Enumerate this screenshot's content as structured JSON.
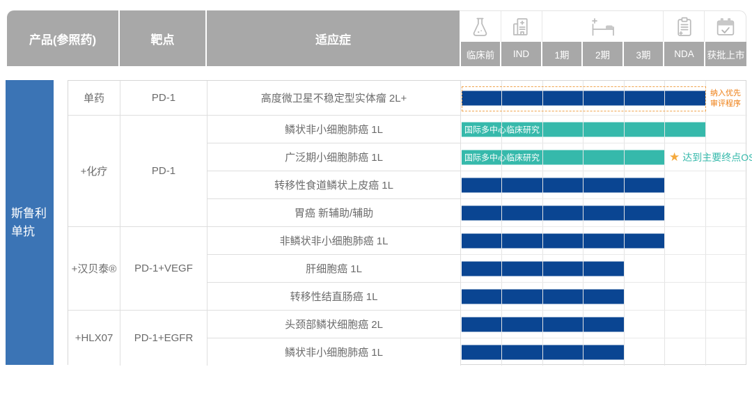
{
  "palette": {
    "header_bg": "#a8a8a8",
    "sidebar_blue": "#3b74b5",
    "navy": "#0a4592",
    "teal": "#36b9ab",
    "orange": "#ee7d11",
    "orange_dash": "#f0a24b",
    "star_amber": "#f5a93c",
    "grid_line": "#e4e4e4",
    "text_gray": "#6b6b6b"
  },
  "header": {
    "columns": {
      "product": "产品(参照药)",
      "target": "靶点",
      "indication": "适应症"
    },
    "phase_icons": [
      "flask-icon",
      "hospital-icon",
      "hospital-bed-icon",
      "clipboard-icon",
      "calendar-check-icon"
    ]
  },
  "sidebar": {
    "product_name": "斯鲁利单抗"
  },
  "chart_data": {
    "type": "bar",
    "subtype": "pipeline-gantt",
    "product": "斯鲁利单抗",
    "phase_axis": [
      "临床前",
      "IND",
      "1期",
      "2期",
      "3期",
      "NDA",
      "获批上市"
    ],
    "groups": [
      {
        "regimen": "单药",
        "target": "PD-1",
        "row_start": 1,
        "row_count": 1
      },
      {
        "regimen": "+化疗",
        "target": "PD-1",
        "row_start": 2,
        "row_count": 4
      },
      {
        "regimen": "+汉贝泰®",
        "target": "PD-1+VEGF",
        "row_start": 6,
        "row_count": 3
      },
      {
        "regimen": "+HLX07",
        "target": "PD-1+EGFR",
        "row_start": 9,
        "row_count": 2
      }
    ],
    "series": [
      {
        "indication": "高度微卫星不稳定型实体瘤 2L+",
        "start_phase": "临床前",
        "end_phase": "NDA",
        "color": "navy",
        "annotation": "纳入优先审评程序"
      },
      {
        "indication": "鳞状非小细胞肺癌 1L",
        "start_phase": "临床前",
        "end_phase": "NDA",
        "color": "teal",
        "bar_label": "国际多中心临床研究"
      },
      {
        "indication": "广泛期小细胞肺癌 1L",
        "start_phase": "临床前",
        "end_phase": "3期",
        "color": "teal",
        "bar_label": "国际多中心临床研究",
        "milestone": {
          "icon": "star-icon",
          "text": "达到主要终点OS"
        }
      },
      {
        "indication": "转移性食道鳞状上皮癌 1L",
        "start_phase": "临床前",
        "end_phase": "3期",
        "color": "navy"
      },
      {
        "indication": "胃癌 新辅助/辅助",
        "start_phase": "临床前",
        "end_phase": "3期",
        "color": "navy"
      },
      {
        "indication": "非鳞状非小细胞肺癌 1L",
        "start_phase": "临床前",
        "end_phase": "3期",
        "color": "navy"
      },
      {
        "indication": "肝细胞癌 1L",
        "start_phase": "临床前",
        "end_phase": "2期",
        "color": "navy"
      },
      {
        "indication": "转移性结直肠癌 1L",
        "start_phase": "临床前",
        "end_phase": "2期",
        "color": "navy"
      },
      {
        "indication": "头颈部鳞状细胞癌 2L",
        "start_phase": "临床前",
        "end_phase": "2期",
        "color": "navy"
      },
      {
        "indication": "鳞状非小细胞肺癌 1L",
        "start_phase": "临床前",
        "end_phase": "2期",
        "color": "navy"
      }
    ]
  }
}
